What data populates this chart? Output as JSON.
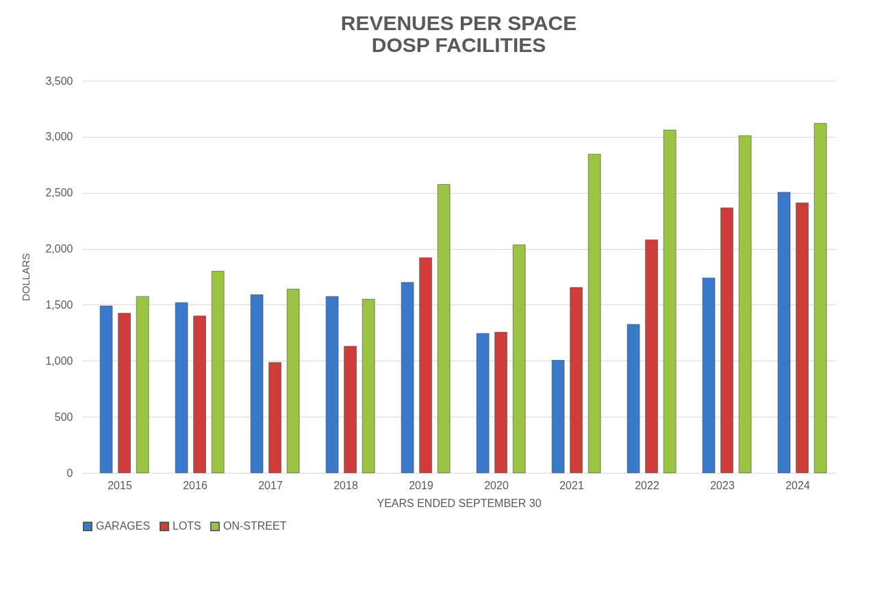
{
  "chart_data": {
    "type": "bar",
    "title": [
      "REVENUES PER SPACE",
      "DOSP FACILITIES"
    ],
    "categories": [
      "2015",
      "2016",
      "2017",
      "2018",
      "2019",
      "2020",
      "2021",
      "2022",
      "2023",
      "2024"
    ],
    "series": [
      {
        "name": "GARAGES",
        "color": "#3a78c9",
        "values": [
          1490,
          1520,
          1590,
          1575,
          1700,
          1245,
          1005,
          1325,
          1740,
          2505
        ]
      },
      {
        "name": "LOTS",
        "color": "#d03c3a",
        "values": [
          1425,
          1400,
          985,
          1130,
          1920,
          1255,
          1655,
          2080,
          2365,
          2410
        ]
      },
      {
        "name": "ON-STREET",
        "color": "#9bc445",
        "values": [
          1575,
          1800,
          1640,
          1550,
          2575,
          2035,
          2845,
          3060,
          3010,
          3120
        ]
      }
    ],
    "xlabel": "YEARS ENDED SEPTEMBER 30",
    "ylabel": "DOLLARS",
    "ylim": [
      0,
      3500
    ],
    "yticks": [
      0,
      500,
      {
        "value": 1000,
        "label": "1,000"
      },
      {
        "value": 1500,
        "label": "1,500"
      },
      {
        "value": 2000,
        "label": "2,000"
      },
      {
        "value": 2500,
        "label": "2,500"
      },
      {
        "value": 3000,
        "label": "3,000"
      },
      {
        "value": 3500,
        "label": "3,500"
      }
    ],
    "grid": "y",
    "legend": "bottom"
  }
}
